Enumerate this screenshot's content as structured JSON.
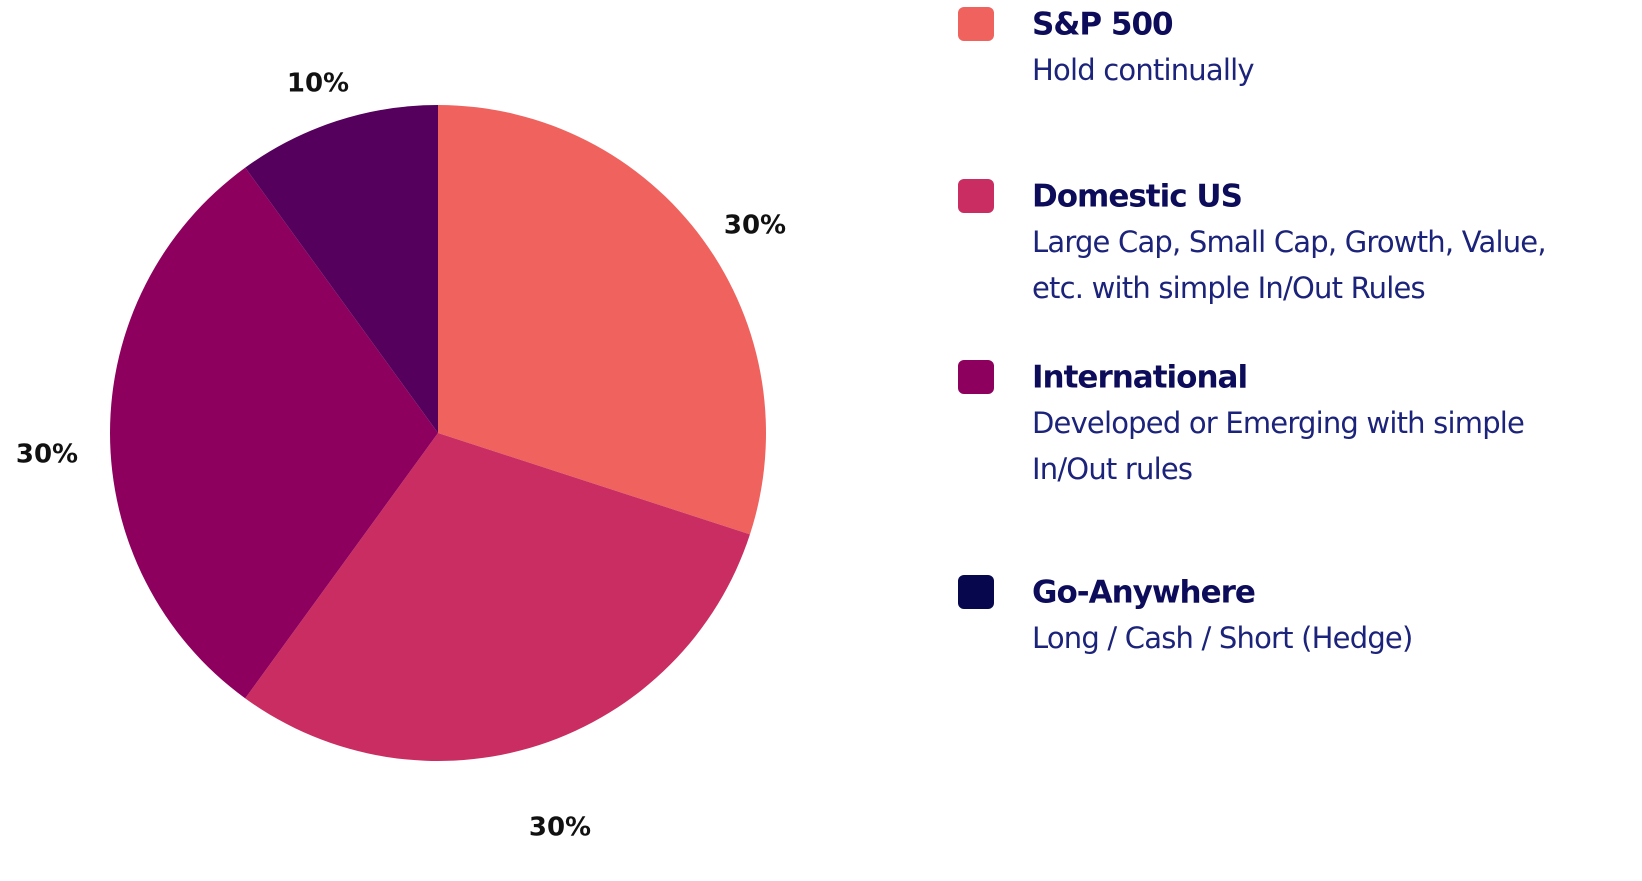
{
  "chart_data": {
    "type": "pie",
    "categories": [
      "S&P 500",
      "Domestic US",
      "International",
      "Go-Anywhere"
    ],
    "descriptions": [
      [
        "Hold continually"
      ],
      [
        "Large Cap, Small Cap, Growth, Value,",
        "etc. with simple In/Out Rules"
      ],
      [
        "Developed or Emerging with simple",
        "In/Out rules"
      ],
      [
        "Long / Cash / Short (Hedge)"
      ]
    ],
    "values": [
      30,
      30,
      30,
      10
    ],
    "value_labels": [
      "30%",
      "30%",
      "30%",
      "10%"
    ],
    "colors": [
      "#f0625d",
      "#c92d62",
      "#8e005e",
      "#54005c"
    ],
    "legend_colors": [
      "#f0625d",
      "#c92d62",
      "#8e005e",
      "#07074e"
    ],
    "start_angle": 0,
    "direction": "clockwise"
  }
}
